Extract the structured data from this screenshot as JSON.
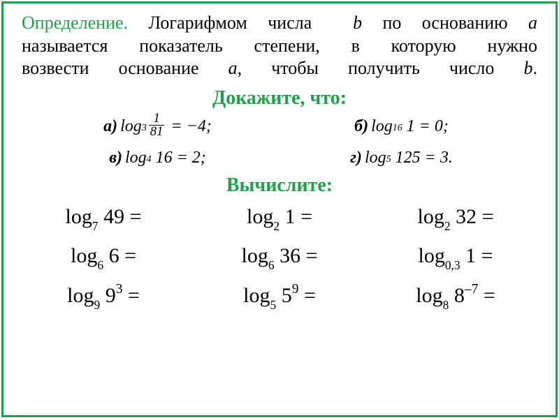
{
  "colors": {
    "border": "#1fa04a",
    "def_title": "#1fa04a",
    "heading": "#1fa04a",
    "body_text": "#000000"
  },
  "definition": {
    "label": "Определение.",
    "line1_rest": " Логарифмом числа ",
    "b": "b",
    "line1_cont": " по основанию ",
    "a": "а",
    "line2": "называется показатель степени, в которую нужно",
    "line3_a": "возвести основание ",
    "line3_b": ", чтобы получить число ",
    "line3_c": "."
  },
  "prove_heading": "Докажите, что:",
  "proofs": {
    "a": {
      "label": "а)",
      "base": "3",
      "num": "1",
      "den": "81",
      "rhs": "−4;"
    },
    "b": {
      "label": "б)",
      "base": "16",
      "arg": "1",
      "rhs": "0;"
    },
    "v": {
      "label": "в)",
      "base": "4",
      "arg": "16",
      "rhs": "2;"
    },
    "g": {
      "label": "г)",
      "base": "5",
      "arg": "125",
      "rhs": "3."
    }
  },
  "calc_heading": "Вычислите:",
  "calc": [
    {
      "base": "7",
      "arg": "49",
      "exp": ""
    },
    {
      "base": "2",
      "arg": "1",
      "exp": ""
    },
    {
      "base": "2",
      "arg": "32",
      "exp": ""
    },
    {
      "base": "6",
      "arg": "6",
      "exp": ""
    },
    {
      "base": "6",
      "arg": "36",
      "exp": ""
    },
    {
      "base": "0,3",
      "arg": "1",
      "exp": ""
    },
    {
      "base": "9",
      "arg": "9",
      "exp": "3"
    },
    {
      "base": "5",
      "arg": "5",
      "exp": "9"
    },
    {
      "base": "8",
      "arg": "8",
      "exp": "–7"
    }
  ]
}
